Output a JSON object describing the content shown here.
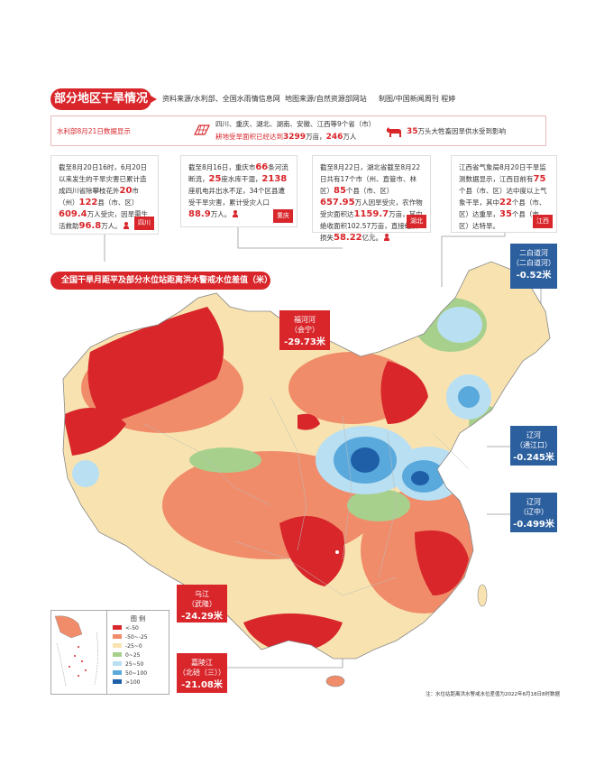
{
  "header": {
    "title": "部分地区干旱情况",
    "credit_data": "资料来源/水利部、全国水雨情信息网",
    "credit_map": "地图来源/自然资源部网站",
    "credit_author": "制图/中国新闻周刊 程婷"
  },
  "summary": {
    "source": "水利部8月21日数据显示",
    "line1": "四川、重庆、湖北、湖南、安徽、江西等9个省（市）",
    "line2_pre": "耕地受旱面积已经达到",
    "line2_val1": "3299",
    "line2_mid": "万亩，",
    "line2_val2": "246",
    "line2_post": "万人",
    "livestock_val": "35",
    "livestock_text": "万头大牲畜因旱供水受到影响"
  },
  "cards": {
    "sichuan": {
      "t1": "截至8月20日16时，6月20日以来发生的干旱灾害已累计造成四川省除攀枝花外",
      "v1": "20",
      "t2": "市（州）",
      "v2": "122",
      "t3": "县（市、区）",
      "v3": "609.4",
      "t4": "万人受灾，因旱需生活救助",
      "v4": "96.8",
      "t5": "万人。",
      "tag": "四川"
    },
    "chongqing": {
      "t1": "截至8月16日，重庆市",
      "v1": "66",
      "t2": "条河流断流，",
      "v2": "25",
      "t3": "座水库干涸，",
      "v3": "2138",
      "t4": "座机电井出水不足，34个区县遭受干旱灾害，累计受灾人口",
      "v4": "88.9",
      "t5": "万人。",
      "tag": "重庆"
    },
    "hubei": {
      "t1": "截至8月22日，湖北省截至8月22日共有17个市（州、直管市、林区）",
      "v1": "85",
      "t2": "个县（市、区）",
      "v2": "657.95",
      "t3": "万人因旱受灾，农作物受灾面积达",
      "v3": "1159.7",
      "t4": "万亩，其中绝收面积102.57万亩，直接经济损失",
      "v4": "58.22",
      "t5": "亿元。",
      "tag": "湖北"
    },
    "jiangxi": {
      "t1": "江西省气象局8月20日干旱监测数据显示，江西目前有",
      "v1": "75",
      "t2": "个县（市、区）达中度以上气象干旱，其中",
      "v2": "22",
      "t3": "个县（市、区）达重旱，",
      "v3": "35",
      "t4": "个县（市、区）达特旱。",
      "tag": "江西"
    }
  },
  "map": {
    "title": "全国干旱月距平及部分水位站距离洪水警戒水位差值（米）",
    "stations": [
      {
        "river": "福河河",
        "site": "（会宁）",
        "value": "-29.73",
        "unit": "米"
      },
      {
        "river": "乌江",
        "site": "（武隆）",
        "value": "-24.29",
        "unit": "米"
      },
      {
        "river": "嘉陵江",
        "site": "（北碚（三））",
        "value": "-21.08",
        "unit": "米"
      },
      {
        "river": "二白道河",
        "site": "（二白道河）",
        "value": "-0.52",
        "unit": "米"
      },
      {
        "river": "辽河",
        "site": "（通江口）",
        "value": "-0.245",
        "unit": "米"
      },
      {
        "river": "辽河",
        "site": "（辽中）",
        "value": "-0.499",
        "unit": "米"
      }
    ],
    "legend": {
      "title": "图 例",
      "items": [
        {
          "label": "<-50",
          "color": "#d8262b"
        },
        {
          "label": "-50~-25",
          "color": "#f08c6a"
        },
        {
          "label": "-25~0",
          "color": "#f8e3b0"
        },
        {
          "label": "0~25",
          "color": "#a8d08d"
        },
        {
          "label": "25~50",
          "color": "#b9dff2"
        },
        {
          "label": "50~100",
          "color": "#5aa9dc"
        },
        {
          "label": ">100",
          "color": "#1e5fa8"
        }
      ]
    },
    "note": "注：水位站距离洪水警戒水位差值为2022年8月18日8时数据"
  }
}
